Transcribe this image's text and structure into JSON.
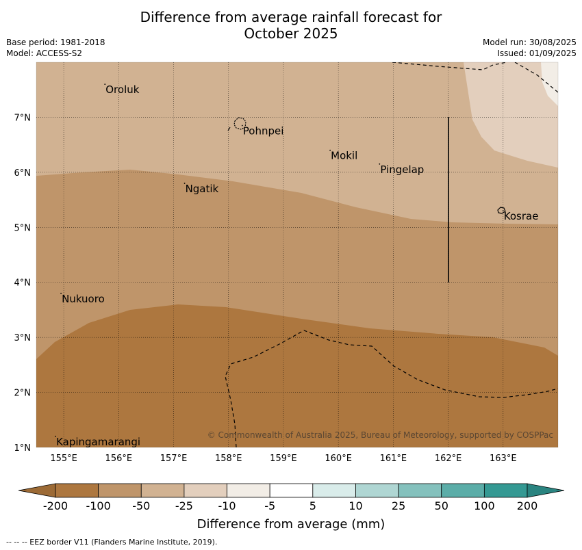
{
  "title_line1": "Difference from average rainfall forecast for",
  "title_line2": "October 2025",
  "meta_left": [
    "Base period: 1981-2018",
    "Model: ACCESS-S2"
  ],
  "meta_right": [
    "Model run: 30/08/2025",
    "Issued: 01/09/2025"
  ],
  "map": {
    "lon_range": [
      154.5,
      164.0
    ],
    "lat_range": [
      1.0,
      8.0
    ],
    "lon_ticks": [
      {
        "value": 155,
        "label": "155°E"
      },
      {
        "value": 156,
        "label": "156°E"
      },
      {
        "value": 157,
        "label": "157°E"
      },
      {
        "value": 158,
        "label": "158°E"
      },
      {
        "value": 159,
        "label": "159°E"
      },
      {
        "value": 160,
        "label": "160°E"
      },
      {
        "value": 161,
        "label": "161°E"
      },
      {
        "value": 162,
        "label": "162°E"
      },
      {
        "value": 163,
        "label": "163°E"
      }
    ],
    "lat_ticks": [
      {
        "value": 7,
        "label": "7°N"
      },
      {
        "value": 6,
        "label": "6°N"
      },
      {
        "value": 5,
        "label": "5°N"
      },
      {
        "value": 4,
        "label": "4°N"
      },
      {
        "value": 3,
        "label": "3°N"
      },
      {
        "value": 2,
        "label": "2°N"
      },
      {
        "value": 1,
        "label": "1°N"
      }
    ],
    "places": [
      {
        "name": "Oroluk",
        "lon": 155.75,
        "lat": 7.6
      },
      {
        "name": "Pohnpei",
        "lon": 158.25,
        "lat": 6.85
      },
      {
        "name": "Mokil",
        "lon": 159.85,
        "lat": 6.4
      },
      {
        "name": "Pingelap",
        "lon": 160.75,
        "lat": 6.15
      },
      {
        "name": "Ngatik",
        "lon": 157.2,
        "lat": 5.8
      },
      {
        "name": "Kosrae",
        "lon": 163.0,
        "lat": 5.3
      },
      {
        "name": "Nukuoro",
        "lon": 154.95,
        "lat": 3.8
      },
      {
        "name": "Kapingamarangi",
        "lon": 154.85,
        "lat": 1.2
      }
    ],
    "copyright": "© Commonwealth of Australia 2025, Bureau of Meteorology, supported by COSPPac"
  },
  "colorbar": {
    "title": "Difference from average (mm)",
    "boundaries": [
      "-200",
      "-100",
      "-50",
      "-25",
      "-10",
      "-5",
      "5",
      "10",
      "25",
      "50",
      "100",
      "200"
    ],
    "colors": [
      "#ad773f",
      "#bf956a",
      "#d1b292",
      "#e3cfbd",
      "#f2ede6",
      "#ffffff",
      "#d9ecea",
      "#afd6d3",
      "#84c1bd",
      "#5bada8",
      "#349993"
    ],
    "under_color": "#9c6a35",
    "over_color": "#2a8480"
  },
  "footer": "--  --  -- EEZ border V11 (Flanders Marine Institute, 2019)."
}
